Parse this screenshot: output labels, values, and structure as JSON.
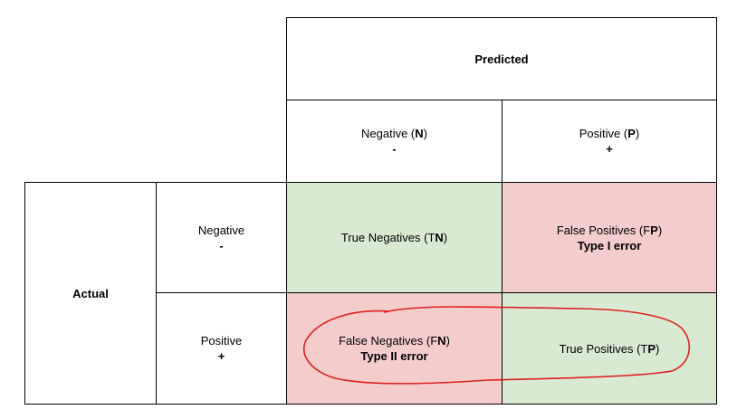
{
  "header": {
    "predicted": "Predicted",
    "actual": "Actual"
  },
  "columns": [
    {
      "label": "Negative (",
      "bold": "N",
      "suffix": ")",
      "sign": "-"
    },
    {
      "label": "Positive (",
      "bold": "P",
      "suffix": ")",
      "sign": "+"
    }
  ],
  "rows": [
    {
      "label": "Negative",
      "sign": "-"
    },
    {
      "label": "Positive",
      "sign": "+"
    }
  ],
  "cells": {
    "tn": {
      "pre": "True Negatives (T",
      "bold": "N",
      "post": ")",
      "note": ""
    },
    "fp": {
      "pre": "False Positives (F",
      "bold": "P",
      "post": ")",
      "note": "Type I error"
    },
    "fn": {
      "pre": "False Negatives (F",
      "bold": "N",
      "post": ")",
      "note": "Type II error"
    },
    "tp": {
      "pre": "True Positives (T",
      "bold": "P",
      "post": ")",
      "note": ""
    }
  },
  "colors": {
    "correct": "#d9ead3",
    "error": "#f4cccc",
    "annotation": "#e02020"
  }
}
